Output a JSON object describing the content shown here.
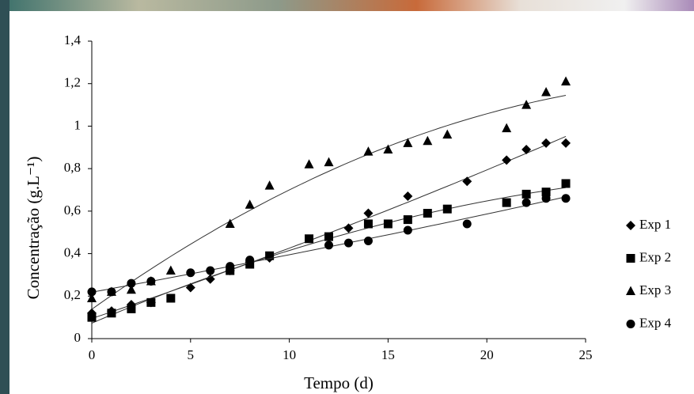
{
  "chart_data": {
    "type": "scatter",
    "x_label": "Tempo (d)",
    "y_label": "Concentração (g.L⁻¹)",
    "xlim": [
      0,
      25
    ],
    "xticks": [
      0,
      5,
      10,
      15,
      20,
      25
    ],
    "ylim": [
      0,
      1.4
    ],
    "yticks": [
      0,
      {
        "value": 0.2,
        "label": "0,2"
      },
      {
        "value": 0.4,
        "label": "0,4"
      },
      {
        "value": 0.6,
        "label": "0,6"
      },
      {
        "value": 0.8,
        "label": "0,8"
      },
      1,
      {
        "value": 1.2,
        "label": "1,2"
      },
      {
        "value": 1.4,
        "label": "1,4"
      }
    ],
    "trend_lines": true,
    "legend": "right",
    "series": [
      {
        "name": "Exp 1",
        "color": "#000000",
        "marker": "diamond",
        "x": [
          0,
          1,
          2,
          3,
          5,
          6,
          7,
          8,
          9,
          13,
          14,
          16,
          19,
          21,
          22,
          23,
          24
        ],
        "values": [
          0.12,
          0.13,
          0.16,
          0.17,
          0.24,
          0.28,
          0.32,
          0.36,
          0.38,
          0.52,
          0.59,
          0.67,
          0.74,
          0.84,
          0.89,
          0.92,
          0.92
        ]
      },
      {
        "name": "Exp 2",
        "color": "#000000",
        "marker": "square",
        "x": [
          0,
          1,
          2,
          3,
          4,
          7,
          8,
          9,
          11,
          12,
          14,
          15,
          16,
          17,
          18,
          21,
          22,
          23,
          24
        ],
        "values": [
          0.1,
          0.12,
          0.14,
          0.17,
          0.19,
          0.32,
          0.35,
          0.39,
          0.47,
          0.48,
          0.54,
          0.54,
          0.56,
          0.59,
          0.61,
          0.64,
          0.68,
          0.69,
          0.73
        ]
      },
      {
        "name": "Exp 3",
        "color": "#000000",
        "marker": "triangle",
        "x": [
          0,
          1,
          2,
          3,
          4,
          7,
          8,
          9,
          11,
          12,
          14,
          15,
          16,
          17,
          18,
          21,
          22,
          23,
          24
        ],
        "values": [
          0.19,
          0.22,
          0.23,
          0.27,
          0.32,
          0.54,
          0.63,
          0.72,
          0.82,
          0.83,
          0.88,
          0.89,
          0.92,
          0.93,
          0.96,
          0.99,
          1.1,
          1.16,
          1.21
        ]
      },
      {
        "name": "Exp 4",
        "color": "#000000",
        "marker": "circle",
        "x": [
          0,
          1,
          2,
          3,
          5,
          6,
          7,
          8,
          12,
          13,
          14,
          16,
          19,
          22,
          23,
          24
        ],
        "values": [
          0.22,
          0.22,
          0.26,
          0.27,
          0.31,
          0.32,
          0.34,
          0.37,
          0.44,
          0.45,
          0.46,
          0.51,
          0.54,
          0.64,
          0.66,
          0.66
        ]
      }
    ]
  }
}
